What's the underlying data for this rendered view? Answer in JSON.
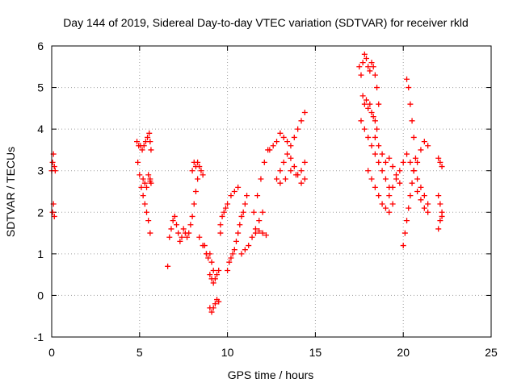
{
  "chart_data": {
    "type": "scatter",
    "title": "Day 144 of 2019, Sidereal Day-to-day VTEC variation (SDTVAR) for receiver rkld",
    "xlabel": "GPS time / hours",
    "ylabel": "SDTVAR / TECUs",
    "xlim": [
      0,
      25
    ],
    "ylim": [
      -1,
      6
    ],
    "xticks": [
      0,
      5,
      10,
      15,
      20,
      25
    ],
    "yticks": [
      -1,
      0,
      1,
      2,
      3,
      4,
      5,
      6
    ],
    "grid": true,
    "marker": "+",
    "color": "#ff0000",
    "series": [
      {
        "name": "SDTVAR",
        "x": [
          0.0,
          0.05,
          0.1,
          0.15,
          0.2,
          0.05,
          0.1,
          0.15,
          4.85,
          4.95,
          5.05,
          5.15,
          5.25,
          5.35,
          5.45,
          5.55,
          5.6,
          5.65,
          4.9,
          5.0,
          5.1,
          5.2,
          5.3,
          5.4,
          5.5,
          5.6,
          5.2,
          5.3,
          5.4,
          5.5,
          5.6,
          5.65,
          5.6,
          6.6,
          6.7,
          6.8,
          6.9,
          7.0,
          7.1,
          7.2,
          7.3,
          7.4,
          7.5,
          7.6,
          7.7,
          7.8,
          7.9,
          8.0,
          8.1,
          8.2,
          8.3,
          8.0,
          8.1,
          8.2,
          8.3,
          8.4,
          8.5,
          8.6,
          8.7,
          8.8,
          8.9,
          9.0,
          9.1,
          9.2,
          8.4,
          8.6,
          8.8,
          9.0,
          9.1,
          9.2,
          9.3,
          9.4,
          9.5,
          9.6,
          9.0,
          9.1,
          9.2,
          9.3,
          9.4,
          9.5,
          9.6,
          9.7,
          9.8,
          9.9,
          10.0,
          10.0,
          10.1,
          10.2,
          10.3,
          10.4,
          10.5,
          10.6,
          10.7,
          10.8,
          10.9,
          11.0,
          11.1,
          10.2,
          10.4,
          10.6,
          10.8,
          11.0,
          11.2,
          11.4,
          11.6,
          11.8,
          12.0,
          11.5,
          11.7,
          11.9,
          12.1,
          12.3,
          11.6,
          11.8,
          12.0,
          12.2,
          12.4,
          12.6,
          12.8,
          13.0,
          13.2,
          13.4,
          13.6,
          13.8,
          14.0,
          14.2,
          14.4,
          12.8,
          13.0,
          13.2,
          13.4,
          13.6,
          13.8,
          14.0,
          14.2,
          14.4,
          13.0,
          13.3,
          13.6,
          13.9,
          14.2,
          14.4,
          17.5,
          17.6,
          17.7,
          17.8,
          17.9,
          18.0,
          18.1,
          18.2,
          18.3,
          18.4,
          18.5,
          18.6,
          17.7,
          17.8,
          17.9,
          18.0,
          18.1,
          18.2,
          18.3,
          18.4,
          18.5,
          17.6,
          17.8,
          18.0,
          18.2,
          18.4,
          18.6,
          18.8,
          19.0,
          19.2,
          18.4,
          18.6,
          18.8,
          19.0,
          19.2,
          19.4,
          19.6,
          19.8,
          18.0,
          18.2,
          18.4,
          18.6,
          18.8,
          19.0,
          19.2,
          19.4,
          19.2,
          19.4,
          19.6,
          19.8,
          20.0,
          20.2,
          20.4,
          20.6,
          20.8,
          20.2,
          20.3,
          20.4,
          20.5,
          20.6,
          20.0,
          20.1,
          20.2,
          20.3,
          20.4,
          20.5,
          20.6,
          20.7,
          20.6,
          20.8,
          21.0,
          21.2,
          21.4,
          20.8,
          21.0,
          21.2,
          21.4,
          21.0,
          21.2,
          21.4,
          22.0,
          22.1,
          22.2,
          22.0,
          22.1,
          22.2,
          22.0,
          22.1,
          22.2
        ],
        "y": [
          3.0,
          3.2,
          3.4,
          3.1,
          3.0,
          2.0,
          2.2,
          1.9,
          3.7,
          3.6,
          3.6,
          3.5,
          3.6,
          3.7,
          3.8,
          3.9,
          3.7,
          3.5,
          3.2,
          2.9,
          2.6,
          2.4,
          2.2,
          2.0,
          1.8,
          1.5,
          2.8,
          2.7,
          2.6,
          2.9,
          2.8,
          2.7,
          2.75,
          0.7,
          1.4,
          1.6,
          1.8,
          1.9,
          1.7,
          1.5,
          1.3,
          1.4,
          1.6,
          1.5,
          1.4,
          1.5,
          1.7,
          1.9,
          2.2,
          2.5,
          2.8,
          3.0,
          3.2,
          3.1,
          3.2,
          3.1,
          3.0,
          2.9,
          1.2,
          1.0,
          0.9,
          1.0,
          0.8,
          0.6,
          1.4,
          1.2,
          1.0,
          0.5,
          0.4,
          0.3,
          0.4,
          0.5,
          0.6,
          1.5,
          -0.3,
          -0.4,
          -0.3,
          -0.2,
          -0.1,
          -0.15,
          1.7,
          1.9,
          2.0,
          2.1,
          2.2,
          0.6,
          0.8,
          0.9,
          1.0,
          1.1,
          1.3,
          1.5,
          1.7,
          1.9,
          2.0,
          2.2,
          2.4,
          2.4,
          2.5,
          2.6,
          1.0,
          1.1,
          1.2,
          1.4,
          1.6,
          1.8,
          2.0,
          2.0,
          2.4,
          2.8,
          3.2,
          3.5,
          1.5,
          1.55,
          1.5,
          1.45,
          3.5,
          3.6,
          3.7,
          3.9,
          3.8,
          3.7,
          3.6,
          3.8,
          4.0,
          4.2,
          4.4,
          2.8,
          3.0,
          3.2,
          3.4,
          3.3,
          3.1,
          2.9,
          3.0,
          3.2,
          2.7,
          2.8,
          3.0,
          2.9,
          2.7,
          2.8,
          5.5,
          5.3,
          5.6,
          5.8,
          5.7,
          5.5,
          5.4,
          5.6,
          5.5,
          5.3,
          5.0,
          4.6,
          4.8,
          4.6,
          4.7,
          4.5,
          4.6,
          4.4,
          4.3,
          4.2,
          4.0,
          4.2,
          4.0,
          3.8,
          3.6,
          3.4,
          3.2,
          3.0,
          2.8,
          2.6,
          3.8,
          3.6,
          3.4,
          3.2,
          3.3,
          3.1,
          2.9,
          2.7,
          3.0,
          2.8,
          2.6,
          2.4,
          2.2,
          2.1,
          2.0,
          2.2,
          2.4,
          2.6,
          2.8,
          3.0,
          3.2,
          3.4,
          3.2,
          3.0,
          2.8,
          5.2,
          5.0,
          4.6,
          4.2,
          3.8,
          1.2,
          1.5,
          1.8,
          2.1,
          2.4,
          2.7,
          3.0,
          3.3,
          3.0,
          3.2,
          3.5,
          3.7,
          3.6,
          2.5,
          2.3,
          2.1,
          2.0,
          2.6,
          2.4,
          2.2,
          3.3,
          3.2,
          3.1,
          2.4,
          2.2,
          2.0,
          1.6,
          1.8,
          1.9
        ]
      }
    ]
  }
}
